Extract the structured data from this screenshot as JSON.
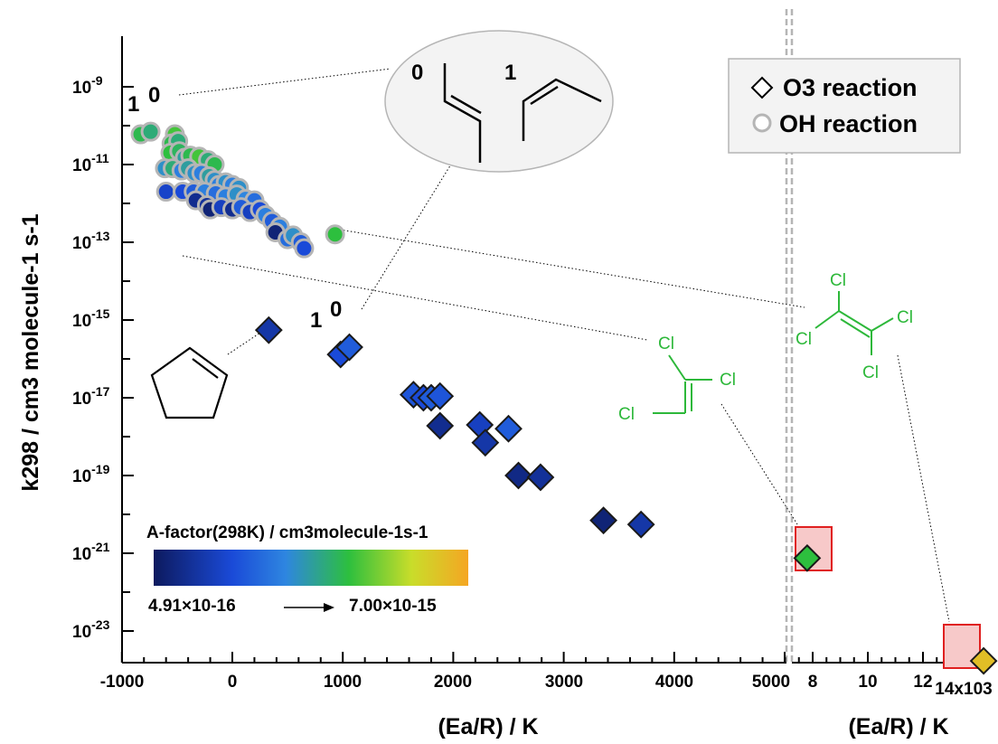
{
  "chart_data": {
    "type": "scatter",
    "xlabel_left": "(Ea/R) / K",
    "xlabel_right": "(Ea/R) / K",
    "ylabel": "k298 / cm3 molecule-1 s-1",
    "y_scale": "log",
    "ylim": [
      2e-24,
      3e-09
    ],
    "x_left_ticks": [
      "-1000",
      "0",
      "1000",
      "2000",
      "3000",
      "4000",
      "5000"
    ],
    "x_right_ticks": [
      "8",
      "10",
      "12",
      "14x103"
    ],
    "y_ticks": [
      "10-9",
      "10-11",
      "10-13",
      "10-15",
      "10-17",
      "10-19",
      "10-21",
      "10-23"
    ],
    "legend": [
      {
        "marker": "diamond",
        "label": "O3 reaction"
      },
      {
        "marker": "circle",
        "label": "OH reaction"
      }
    ],
    "legend_position": "top-right",
    "colorbar": {
      "title": "A-factor(298K) / cm3molecule-1s-1",
      "min_label": "4.91×10-16",
      "max_label": "7.00×10-15",
      "colors": [
        "#0d1a5e",
        "#1a4ad8",
        "#2e86e0",
        "#2dbf3e",
        "#c9dd2a",
        "#f5a623"
      ]
    },
    "series": [
      {
        "name": "OH reaction",
        "marker": "circle",
        "points": [
          {
            "x": -830,
            "y": 6e-11,
            "c": 0.6
          },
          {
            "x": -740,
            "y": 7e-11,
            "c": 0.55
          },
          {
            "x": -520,
            "y": 6e-11,
            "c": 0.65
          },
          {
            "x": -550,
            "y": 3.5e-11,
            "c": 0.6
          },
          {
            "x": -490,
            "y": 4e-11,
            "c": 0.55
          },
          {
            "x": -560,
            "y": 2e-11,
            "c": 0.62
          },
          {
            "x": -480,
            "y": 2.2e-11,
            "c": 0.58
          },
          {
            "x": -430,
            "y": 1.5e-11,
            "c": 0.5
          },
          {
            "x": -380,
            "y": 1.7e-11,
            "c": 0.6
          },
          {
            "x": -300,
            "y": 1.6e-11,
            "c": 0.65
          },
          {
            "x": -220,
            "y": 1.3e-11,
            "c": 0.55
          },
          {
            "x": -160,
            "y": 1e-11,
            "c": 0.6
          },
          {
            "x": -610,
            "y": 8e-12,
            "c": 0.45
          },
          {
            "x": -540,
            "y": 8e-12,
            "c": 0.55
          },
          {
            "x": -460,
            "y": 7e-12,
            "c": 0.4
          },
          {
            "x": -400,
            "y": 8e-12,
            "c": 0.5
          },
          {
            "x": -340,
            "y": 6e-12,
            "c": 0.45
          },
          {
            "x": -280,
            "y": 6e-12,
            "c": 0.4
          },
          {
            "x": -210,
            "y": 5e-12,
            "c": 0.5
          },
          {
            "x": -160,
            "y": 4e-12,
            "c": 0.45
          },
          {
            "x": -120,
            "y": 3e-12,
            "c": 0.4
          },
          {
            "x": -60,
            "y": 3.5e-12,
            "c": 0.45
          },
          {
            "x": 0,
            "y": 3e-12,
            "c": 0.4
          },
          {
            "x": 60,
            "y": 2.5e-12,
            "c": 0.45
          },
          {
            "x": -600,
            "y": 2e-12,
            "c": 0.22
          },
          {
            "x": -450,
            "y": 2e-12,
            "c": 0.25
          },
          {
            "x": -350,
            "y": 2e-12,
            "c": 0.3
          },
          {
            "x": -250,
            "y": 2e-12,
            "c": 0.4
          },
          {
            "x": -150,
            "y": 1.8e-12,
            "c": 0.35
          },
          {
            "x": -60,
            "y": 1.5e-12,
            "c": 0.4
          },
          {
            "x": 40,
            "y": 1.7e-12,
            "c": 0.45
          },
          {
            "x": 120,
            "y": 1.3e-12,
            "c": 0.42
          },
          {
            "x": 200,
            "y": 1.2e-12,
            "c": 0.35
          },
          {
            "x": -330,
            "y": 1.2e-12,
            "c": 0.1
          },
          {
            "x": -230,
            "y": 9e-13,
            "c": 0.12
          },
          {
            "x": -200,
            "y": 7e-13,
            "c": 0.05
          },
          {
            "x": -100,
            "y": 8e-13,
            "c": 0.2
          },
          {
            "x": 0,
            "y": 7e-13,
            "c": 0.1
          },
          {
            "x": 80,
            "y": 8e-13,
            "c": 0.3
          },
          {
            "x": 160,
            "y": 6e-13,
            "c": 0.2
          },
          {
            "x": 250,
            "y": 7e-13,
            "c": 0.25
          },
          {
            "x": 300,
            "y": 5e-13,
            "c": 0.4
          },
          {
            "x": 360,
            "y": 3.5e-13,
            "c": 0.3
          },
          {
            "x": 430,
            "y": 2.5e-13,
            "c": 0.4
          },
          {
            "x": 390,
            "y": 1.8e-13,
            "c": 0.05
          },
          {
            "x": 500,
            "y": 1.2e-13,
            "c": 0.35
          },
          {
            "x": 550,
            "y": 1.5e-13,
            "c": 0.45
          },
          {
            "x": 620,
            "y": 1e-13,
            "c": 0.3
          },
          {
            "x": 650,
            "y": 7e-14,
            "c": 0.25
          },
          {
            "x": 930,
            "y": 1.6e-13,
            "c": 0.62
          }
        ]
      },
      {
        "name": "O3 reaction",
        "marker": "diamond",
        "points": [
          {
            "x": 330,
            "y": 5.5e-16,
            "c": 0.15
          },
          {
            "x": 980,
            "y": 1.3e-16,
            "c": 0.25
          },
          {
            "x": 1060,
            "y": 2e-16,
            "c": 0.3
          },
          {
            "x": 1640,
            "y": 1.2e-17,
            "c": 0.28
          },
          {
            "x": 1730,
            "y": 1e-17,
            "c": 0.25
          },
          {
            "x": 1800,
            "y": 1e-17,
            "c": 0.3
          },
          {
            "x": 1880,
            "y": 1.1e-17,
            "c": 0.28
          },
          {
            "x": 1880,
            "y": 1.9e-18,
            "c": 0.1
          },
          {
            "x": 2240,
            "y": 2e-18,
            "c": 0.2
          },
          {
            "x": 2290,
            "y": 7e-19,
            "c": 0.15
          },
          {
            "x": 2500,
            "y": 1.6e-18,
            "c": 0.3
          },
          {
            "x": 2590,
            "y": 1e-19,
            "c": 0.08
          },
          {
            "x": 2790,
            "y": 9e-20,
            "c": 0.12
          },
          {
            "x": 3360,
            "y": 7e-21,
            "c": 0.05
          },
          {
            "x": 3700,
            "y": 5.5e-21,
            "c": 0.15
          },
          {
            "x": 7800,
            "y": 7.5e-22,
            "c": 0.62
          },
          {
            "x": 14200,
            "y": 1.7e-24,
            "c": 0.92
          }
        ]
      }
    ],
    "annotations": {
      "point_labels": [
        "1",
        "0",
        "1",
        "0"
      ],
      "structure_labels": [
        "0",
        "1"
      ],
      "chlorine": [
        "Cl",
        "Cl",
        "Cl",
        "Cl",
        "Cl",
        "Cl",
        "Cl"
      ]
    }
  }
}
